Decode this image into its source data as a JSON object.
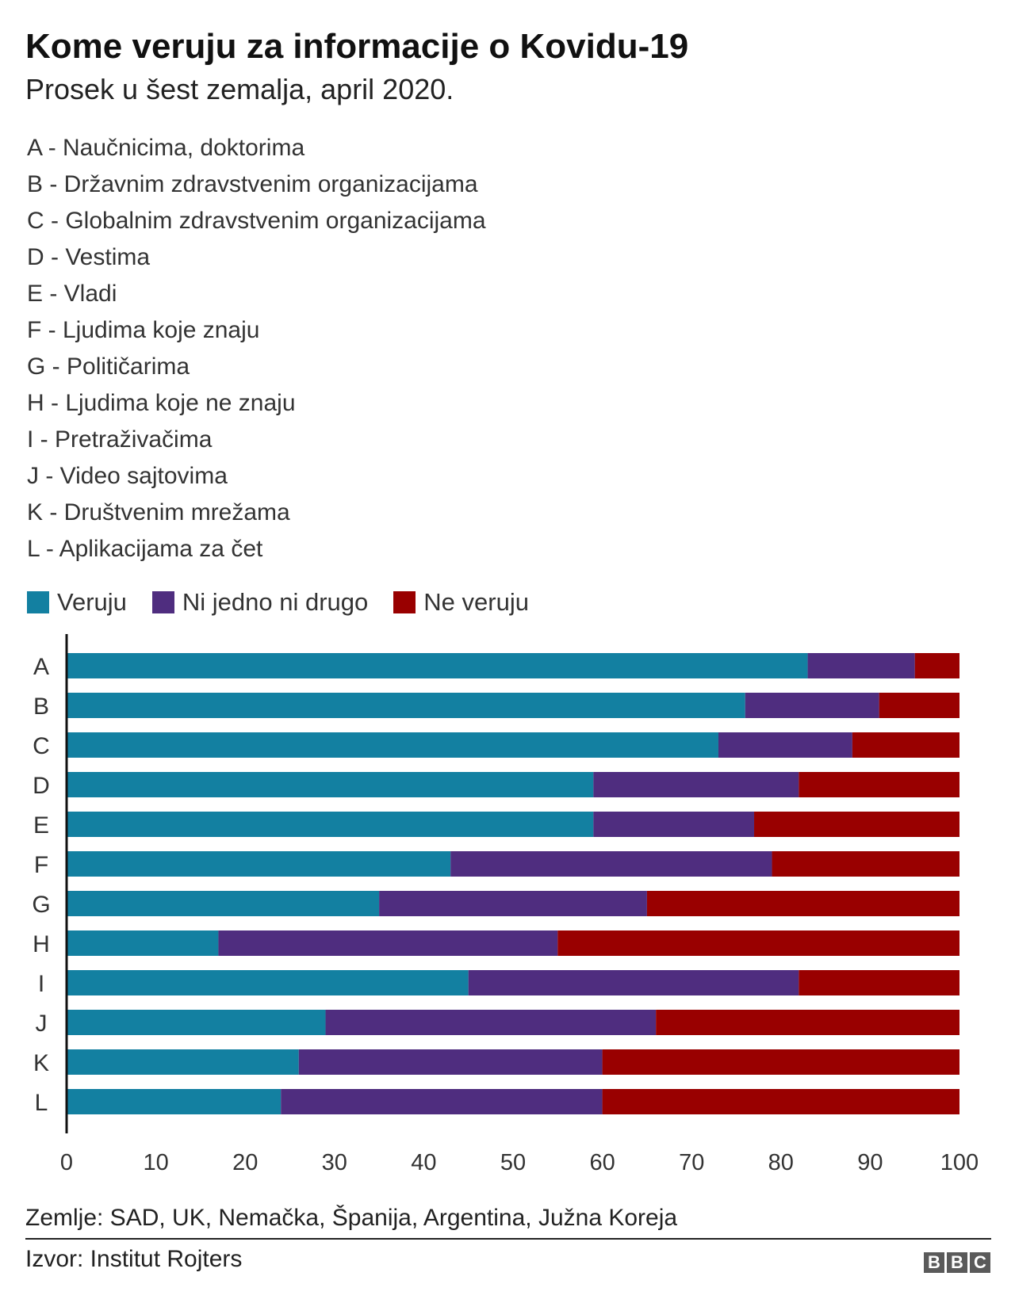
{
  "title": "Kome veruju za informacije o Kovidu-19",
  "subtitle": "Prosek u šest zemalja, april 2020.",
  "key": [
    "A - Naučnicima, doktorima",
    "B - Državnim zdravstvenim organizacijama",
    "C - Globalnim zdravstvenim organizacijama",
    "D - Vestima",
    "E - Vladi",
    "F - Ljudima koje znaju",
    "G - Političarima",
    "H - Ljudima koje ne znaju",
    "I - Pretraživačima",
    "J - Video sajtovima",
    "K - Društvenim mrežama",
    "L - Aplikacijama za čet"
  ],
  "note": "Zemlje: SAD, UK, Nemačka, Španija, Argentina, Južna Koreja",
  "source": "Izvor: Institut Rojters",
  "logo": [
    "B",
    "B",
    "C"
  ],
  "chart_data": {
    "type": "bar",
    "orientation": "horizontal",
    "stacked": true,
    "categories": [
      "A",
      "B",
      "C",
      "D",
      "E",
      "F",
      "G",
      "H",
      "I",
      "J",
      "K",
      "L"
    ],
    "series": [
      {
        "name": "Veruju",
        "color": "#1380a1",
        "values": [
          83,
          76,
          73,
          59,
          59,
          43,
          35,
          17,
          45,
          29,
          26,
          24
        ]
      },
      {
        "name": "Ni jedno ni drugo",
        "color": "#4f2d7f",
        "values": [
          12,
          15,
          15,
          23,
          18,
          36,
          30,
          38,
          37,
          37,
          34,
          36
        ]
      },
      {
        "name": "Ne veruju",
        "color": "#990000",
        "values": [
          5,
          9,
          12,
          18,
          23,
          21,
          35,
          45,
          18,
          34,
          40,
          40
        ]
      }
    ],
    "xlim": [
      0,
      100
    ],
    "xticks": [
      0,
      10,
      20,
      30,
      40,
      50,
      60,
      70,
      80,
      90,
      100
    ],
    "legend_position": "top-left",
    "grid": false
  }
}
